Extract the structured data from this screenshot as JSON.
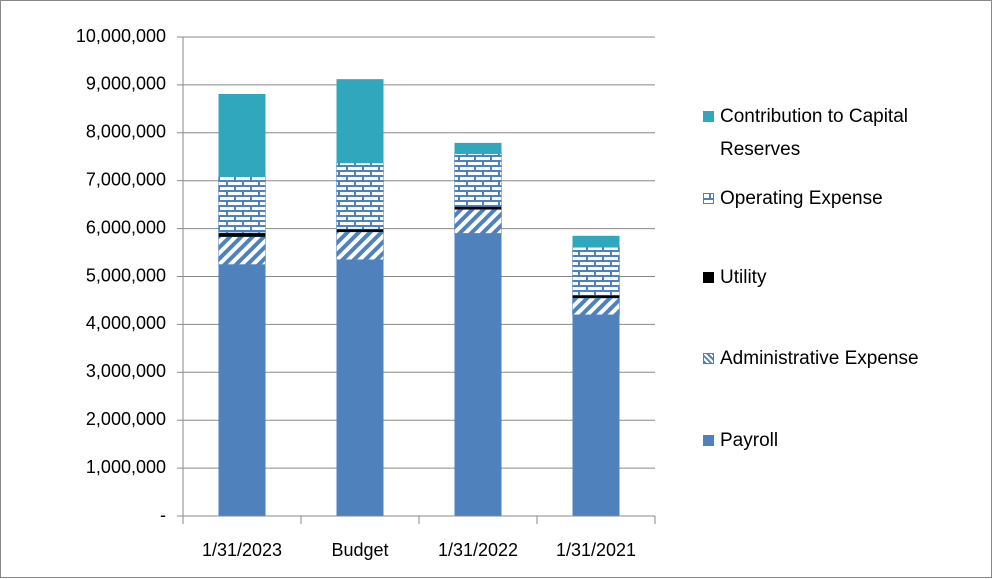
{
  "chart_data": {
    "type": "stacked_bar",
    "categories": [
      "1/31/2023",
      "Budget",
      "1/31/2022",
      "1/31/2021"
    ],
    "series": [
      {
        "name": "Payroll",
        "color": "#4f81bd",
        "values": [
          5250000,
          5350000,
          5900000,
          4200000
        ]
      },
      {
        "name": "Administrative Expense",
        "color": "#4f81bd",
        "pattern": "diagonal",
        "values": [
          580000,
          580000,
          500000,
          350000
        ]
      },
      {
        "name": "Utility",
        "color": "#000000",
        "values": [
          80000,
          60000,
          60000,
          60000
        ]
      },
      {
        "name": "Operating Expense",
        "color": "#4f81bd",
        "pattern": "brick",
        "values": [
          1170000,
          1380000,
          1100000,
          1000000
        ]
      },
      {
        "name": "Contribution to Capital Reserves",
        "color": "#31a7bd",
        "values": [
          1730000,
          1750000,
          230000,
          240000
        ]
      }
    ],
    "ylim": [
      0,
      10000000
    ],
    "yticks": [
      {
        "value": 0,
        "label": "-"
      },
      {
        "value": 1000000,
        "label": "1,000,000"
      },
      {
        "value": 2000000,
        "label": "2,000,000"
      },
      {
        "value": 3000000,
        "label": "3,000,000"
      },
      {
        "value": 4000000,
        "label": "4,000,000"
      },
      {
        "value": 5000000,
        "label": "5,000,000"
      },
      {
        "value": 6000000,
        "label": "6,000,000"
      },
      {
        "value": 7000000,
        "label": "7,000,000"
      },
      {
        "value": 8000000,
        "label": "8,000,000"
      },
      {
        "value": 9000000,
        "label": "9,000,000"
      },
      {
        "value": 10000000,
        "label": "10,000,000"
      }
    ],
    "grid": true,
    "legend": "right"
  }
}
